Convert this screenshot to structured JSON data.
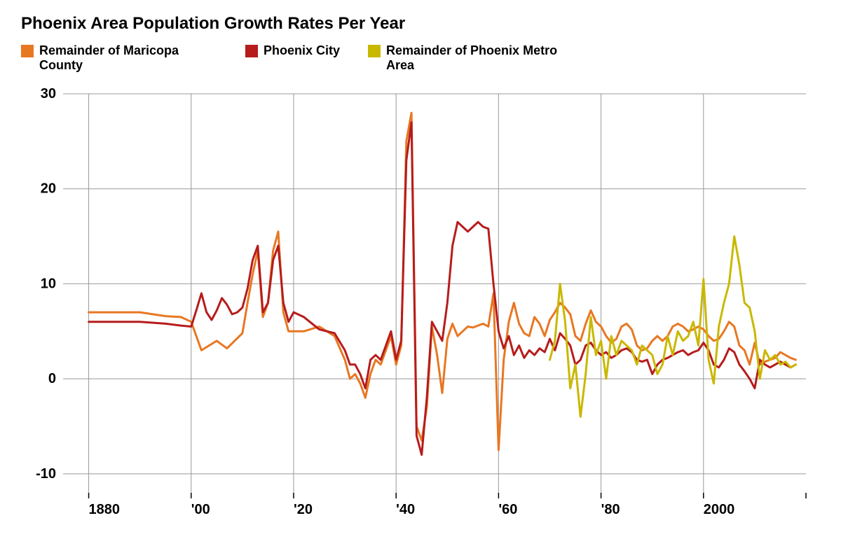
{
  "title": "Phoenix Area Population Growth Rates Per Year",
  "chart": {
    "type": "line",
    "background_color": "#ffffff",
    "grid_color": "#999999",
    "title_fontsize": 24,
    "label_fontsize": 20,
    "line_width": 3,
    "x": {
      "min": 1875,
      "max": 2020,
      "ticks": [
        1880,
        1900,
        1920,
        1940,
        1960,
        1980,
        2000
      ],
      "tick_labels": [
        "1880",
        "'00",
        "'20",
        "'40",
        "'60",
        "'80",
        "2000"
      ]
    },
    "y": {
      "min": -12,
      "max": 30,
      "ticks": [
        -10,
        0,
        10,
        20,
        30
      ]
    },
    "legend": [
      {
        "label": "Remainder of Maricopa County",
        "color": "#e87722"
      },
      {
        "label": "Phoenix City",
        "color": "#b61c1c"
      },
      {
        "label": "Remainder of Phoenix Metro Area",
        "color": "#c9b800"
      }
    ],
    "series": [
      {
        "name": "Remainder of Maricopa County",
        "color": "#e87722",
        "points": [
          [
            1880,
            7
          ],
          [
            1885,
            7
          ],
          [
            1890,
            7
          ],
          [
            1895,
            6.6
          ],
          [
            1898,
            6.5
          ],
          [
            1900,
            6
          ],
          [
            1902,
            3
          ],
          [
            1905,
            4
          ],
          [
            1907,
            3.2
          ],
          [
            1910,
            4.8
          ],
          [
            1911,
            8
          ],
          [
            1912,
            11
          ],
          [
            1913,
            13.5
          ],
          [
            1914,
            6.5
          ],
          [
            1915,
            8
          ],
          [
            1916,
            13.5
          ],
          [
            1917,
            15.5
          ],
          [
            1918,
            7
          ],
          [
            1919,
            5
          ],
          [
            1920,
            5
          ],
          [
            1922,
            5
          ],
          [
            1925,
            5.5
          ],
          [
            1928,
            4.5
          ],
          [
            1930,
            2
          ],
          [
            1931,
            0
          ],
          [
            1932,
            0.5
          ],
          [
            1933,
            -0.5
          ],
          [
            1934,
            -2
          ],
          [
            1935,
            0.5
          ],
          [
            1936,
            2
          ],
          [
            1937,
            1.5
          ],
          [
            1938,
            3
          ],
          [
            1939,
            4.5
          ],
          [
            1940,
            1.5
          ],
          [
            1941,
            3.5
          ],
          [
            1942,
            25
          ],
          [
            1943,
            28
          ],
          [
            1944,
            -5
          ],
          [
            1945,
            -6.5
          ],
          [
            1946,
            -3
          ],
          [
            1947,
            5.5
          ],
          [
            1948,
            2.5
          ],
          [
            1949,
            -1.5
          ],
          [
            1950,
            4.2
          ],
          [
            1951,
            5.8
          ],
          [
            1952,
            4.5
          ],
          [
            1953,
            5
          ],
          [
            1954,
            5.5
          ],
          [
            1955,
            5.4
          ],
          [
            1956,
            5.6
          ],
          [
            1957,
            5.8
          ],
          [
            1958,
            5.5
          ],
          [
            1959,
            9
          ],
          [
            1960,
            -7.5
          ],
          [
            1961,
            2
          ],
          [
            1962,
            6
          ],
          [
            1963,
            8
          ],
          [
            1964,
            5.8
          ],
          [
            1965,
            4.8
          ],
          [
            1966,
            4.5
          ],
          [
            1967,
            6.5
          ],
          [
            1968,
            5.8
          ],
          [
            1969,
            4.5
          ],
          [
            1970,
            6.2
          ],
          [
            1971,
            7
          ],
          [
            1972,
            8
          ],
          [
            1973,
            7.5
          ],
          [
            1974,
            6.8
          ],
          [
            1975,
            4.5
          ],
          [
            1976,
            4
          ],
          [
            1977,
            5.8
          ],
          [
            1978,
            7.2
          ],
          [
            1979,
            6
          ],
          [
            1980,
            5.5
          ],
          [
            1981,
            4.5
          ],
          [
            1982,
            3.8
          ],
          [
            1983,
            4.2
          ],
          [
            1984,
            5.5
          ],
          [
            1985,
            5.8
          ],
          [
            1986,
            5.2
          ],
          [
            1987,
            3.5
          ],
          [
            1988,
            3
          ],
          [
            1989,
            3.2
          ],
          [
            1990,
            4
          ],
          [
            1991,
            4.5
          ],
          [
            1992,
            4
          ],
          [
            1993,
            4.5
          ],
          [
            1994,
            5.5
          ],
          [
            1995,
            5.8
          ],
          [
            1996,
            5.5
          ],
          [
            1997,
            5
          ],
          [
            1998,
            5.2
          ],
          [
            1999,
            5.5
          ],
          [
            2000,
            5.2
          ],
          [
            2001,
            4.5
          ],
          [
            2002,
            4
          ],
          [
            2003,
            4.2
          ],
          [
            2004,
            5
          ],
          [
            2005,
            6
          ],
          [
            2006,
            5.5
          ],
          [
            2007,
            3.5
          ],
          [
            2008,
            3
          ],
          [
            2009,
            1.5
          ],
          [
            2010,
            3.8
          ],
          [
            2011,
            1.5
          ],
          [
            2012,
            1.8
          ],
          [
            2013,
            2
          ],
          [
            2014,
            2.2
          ],
          [
            2015,
            2.8
          ],
          [
            2016,
            2.5
          ],
          [
            2017,
            2.2
          ],
          [
            2018,
            2
          ]
        ]
      },
      {
        "name": "Phoenix City",
        "color": "#b61c1c",
        "points": [
          [
            1880,
            6
          ],
          [
            1885,
            6
          ],
          [
            1890,
            6
          ],
          [
            1895,
            5.8
          ],
          [
            1898,
            5.6
          ],
          [
            1900,
            5.5
          ],
          [
            1901,
            7.2
          ],
          [
            1902,
            9
          ],
          [
            1903,
            7
          ],
          [
            1904,
            6.2
          ],
          [
            1905,
            7.2
          ],
          [
            1906,
            8.5
          ],
          [
            1907,
            7.8
          ],
          [
            1908,
            6.8
          ],
          [
            1909,
            7
          ],
          [
            1910,
            7.5
          ],
          [
            1911,
            9.5
          ],
          [
            1912,
            12.5
          ],
          [
            1913,
            14
          ],
          [
            1914,
            7
          ],
          [
            1915,
            8
          ],
          [
            1916,
            12.5
          ],
          [
            1917,
            14
          ],
          [
            1918,
            8
          ],
          [
            1919,
            6
          ],
          [
            1920,
            7
          ],
          [
            1922,
            6.5
          ],
          [
            1925,
            5.2
          ],
          [
            1928,
            4.8
          ],
          [
            1930,
            3
          ],
          [
            1931,
            1.5
          ],
          [
            1932,
            1.5
          ],
          [
            1933,
            0.5
          ],
          [
            1934,
            -1
          ],
          [
            1935,
            2
          ],
          [
            1936,
            2.5
          ],
          [
            1937,
            2
          ],
          [
            1938,
            3.5
          ],
          [
            1939,
            5
          ],
          [
            1940,
            2
          ],
          [
            1941,
            4
          ],
          [
            1942,
            23
          ],
          [
            1943,
            27
          ],
          [
            1944,
            -6
          ],
          [
            1945,
            -8
          ],
          [
            1946,
            -2
          ],
          [
            1947,
            6
          ],
          [
            1948,
            5
          ],
          [
            1949,
            4
          ],
          [
            1950,
            8
          ],
          [
            1951,
            14
          ],
          [
            1952,
            16.5
          ],
          [
            1953,
            16
          ],
          [
            1954,
            15.5
          ],
          [
            1955,
            16
          ],
          [
            1956,
            16.5
          ],
          [
            1957,
            16
          ],
          [
            1958,
            15.8
          ],
          [
            1959,
            10
          ],
          [
            1960,
            5
          ],
          [
            1961,
            3.2
          ],
          [
            1962,
            4.5
          ],
          [
            1963,
            2.5
          ],
          [
            1964,
            3.5
          ],
          [
            1965,
            2.2
          ],
          [
            1966,
            3
          ],
          [
            1967,
            2.5
          ],
          [
            1968,
            3.2
          ],
          [
            1969,
            2.8
          ],
          [
            1970,
            4.2
          ],
          [
            1971,
            3
          ],
          [
            1972,
            4.8
          ],
          [
            1973,
            4.2
          ],
          [
            1974,
            3.5
          ],
          [
            1975,
            1.5
          ],
          [
            1976,
            2
          ],
          [
            1977,
            3.5
          ],
          [
            1978,
            3.8
          ],
          [
            1979,
            3
          ],
          [
            1980,
            2.5
          ],
          [
            1981,
            2.8
          ],
          [
            1982,
            2.2
          ],
          [
            1983,
            2.5
          ],
          [
            1984,
            3
          ],
          [
            1985,
            3.2
          ],
          [
            1986,
            2.8
          ],
          [
            1987,
            2
          ],
          [
            1988,
            1.8
          ],
          [
            1989,
            2
          ],
          [
            1990,
            0.5
          ],
          [
            1991,
            1.5
          ],
          [
            1992,
            2
          ],
          [
            1993,
            2.2
          ],
          [
            1994,
            2.5
          ],
          [
            1995,
            2.8
          ],
          [
            1996,
            3
          ],
          [
            1997,
            2.5
          ],
          [
            1998,
            2.8
          ],
          [
            1999,
            3
          ],
          [
            2000,
            3.8
          ],
          [
            2001,
            3
          ],
          [
            2002,
            1.5
          ],
          [
            2003,
            1.2
          ],
          [
            2004,
            2
          ],
          [
            2005,
            3.2
          ],
          [
            2006,
            2.8
          ],
          [
            2007,
            1.5
          ],
          [
            2008,
            0.8
          ],
          [
            2009,
            0
          ],
          [
            2010,
            -1
          ],
          [
            2011,
            2
          ],
          [
            2012,
            1.5
          ],
          [
            2013,
            1.2
          ],
          [
            2014,
            1.5
          ],
          [
            2015,
            1.8
          ],
          [
            2016,
            1.5
          ],
          [
            2017,
            1.2
          ],
          [
            2018,
            1.5
          ]
        ]
      },
      {
        "name": "Remainder of Phoenix Metro Area",
        "color": "#c9b800",
        "points": [
          [
            1970,
            2
          ],
          [
            1971,
            4
          ],
          [
            1972,
            10
          ],
          [
            1973,
            6
          ],
          [
            1974,
            -1
          ],
          [
            1975,
            1.5
          ],
          [
            1976,
            -4
          ],
          [
            1977,
            0.5
          ],
          [
            1978,
            6.5
          ],
          [
            1979,
            2.5
          ],
          [
            1980,
            4
          ],
          [
            1981,
            0
          ],
          [
            1982,
            4.5
          ],
          [
            1983,
            2.5
          ],
          [
            1984,
            4
          ],
          [
            1985,
            3.5
          ],
          [
            1986,
            3
          ],
          [
            1987,
            1.5
          ],
          [
            1988,
            3.5
          ],
          [
            1989,
            3
          ],
          [
            1990,
            2.5
          ],
          [
            1991,
            0.5
          ],
          [
            1992,
            1.5
          ],
          [
            1993,
            4.5
          ],
          [
            1994,
            2.5
          ],
          [
            1995,
            5
          ],
          [
            1996,
            4
          ],
          [
            1997,
            4.5
          ],
          [
            1998,
            6
          ],
          [
            1999,
            3.5
          ],
          [
            2000,
            10.5
          ],
          [
            2001,
            2
          ],
          [
            2002,
            -0.5
          ],
          [
            2003,
            5.5
          ],
          [
            2004,
            8
          ],
          [
            2005,
            10
          ],
          [
            2006,
            15
          ],
          [
            2007,
            12
          ],
          [
            2008,
            8
          ],
          [
            2009,
            7.5
          ],
          [
            2010,
            5
          ],
          [
            2011,
            0
          ],
          [
            2012,
            3
          ],
          [
            2013,
            2
          ],
          [
            2014,
            2.5
          ],
          [
            2015,
            1.5
          ],
          [
            2016,
            1.8
          ],
          [
            2017,
            1.2
          ],
          [
            2018,
            1.5
          ]
        ]
      }
    ]
  }
}
